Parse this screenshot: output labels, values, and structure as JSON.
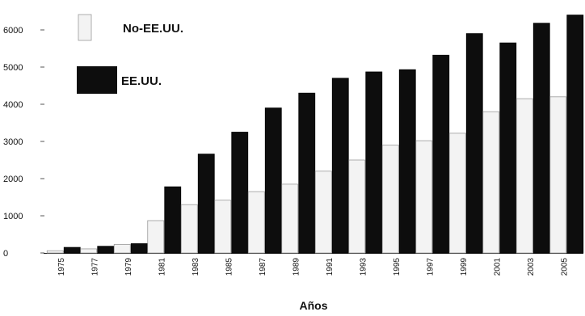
{
  "chart_data": {
    "type": "bar",
    "title": "",
    "xlabel": "Años",
    "ylabel": "",
    "ylim": [
      0,
      6500
    ],
    "yticks": [
      {
        "value": 0,
        "label": "0"
      },
      {
        "value": 1000,
        "label": "1000"
      },
      {
        "value": 2000,
        "label": "2000"
      },
      {
        "value": 3000,
        "label": "3000"
      },
      {
        "value": 4000,
        "label": "4000"
      },
      {
        "value": 5000,
        "label": "5000"
      },
      {
        "value": 6000,
        "label": "6000"
      }
    ],
    "categories": [
      "1975",
      "1977",
      "1979",
      "1981",
      "1983",
      "1985",
      "1987",
      "1989",
      "1991",
      "1993",
      "1995",
      "1997",
      "1999",
      "2001",
      "2003",
      "2005"
    ],
    "grid": false,
    "legend_position": "top-left",
    "series": [
      {
        "name": "No-EE.UU.",
        "color": "#f3f3f3",
        "values": [
          60,
          110,
          230,
          870,
          1300,
          1420,
          1650,
          1850,
          2200,
          2500,
          2900,
          3020,
          3220,
          3800,
          4150,
          4200
        ]
      },
      {
        "name": "EE.UU.",
        "color": "#0d0d0d",
        "values": [
          150,
          180,
          250,
          1780,
          2660,
          3250,
          3900,
          4300,
          4700,
          4870,
          4930,
          5320,
          5900,
          5650,
          6180,
          6400
        ]
      }
    ]
  }
}
